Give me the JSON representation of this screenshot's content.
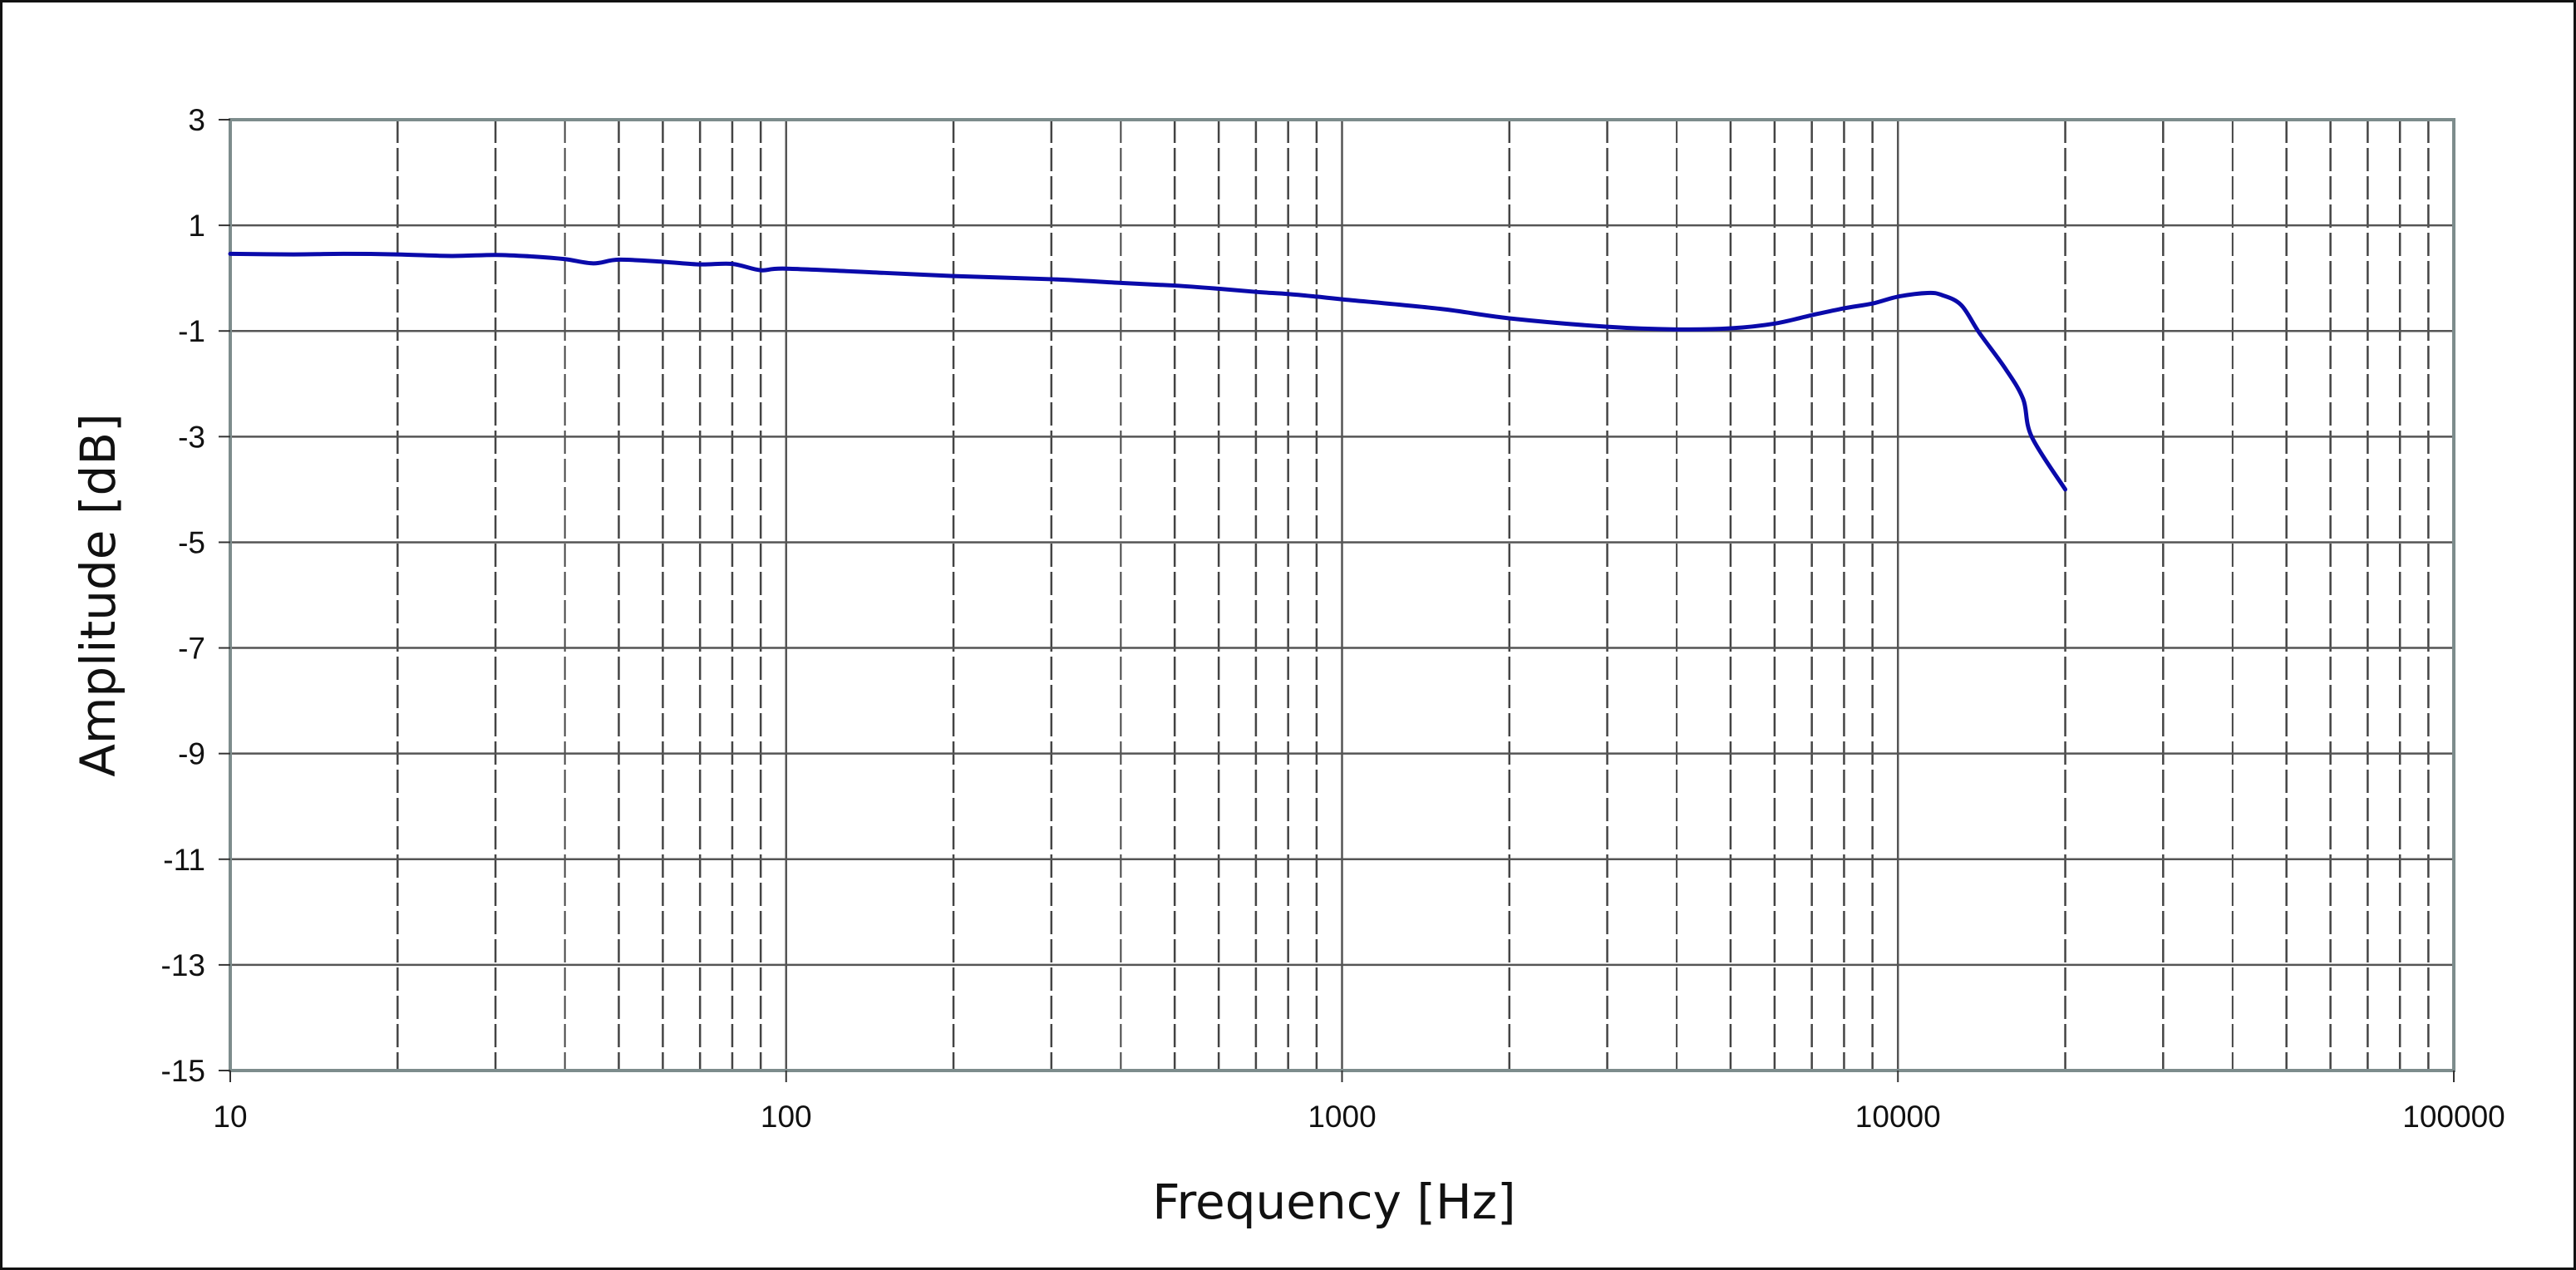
{
  "chart_data": {
    "type": "line",
    "title": "",
    "xlabel": "Frequency [Hz]",
    "ylabel": "Amplitude [dB]",
    "xscale": "log",
    "xlim": [
      10,
      100000
    ],
    "ylim": [
      -15,
      3
    ],
    "x_tick_labels": [
      "10",
      "100",
      "1000",
      "10000",
      "100000"
    ],
    "x_ticks": [
      10,
      100,
      1000,
      10000,
      100000
    ],
    "y_tick_labels": [
      "3",
      "1",
      "-1",
      "-3",
      "-5",
      "-7",
      "-9",
      "-11",
      "-13",
      "-15"
    ],
    "y_ticks": [
      3,
      1,
      -1,
      -3,
      -5,
      -7,
      -9,
      -11,
      -13,
      -15
    ],
    "grid": true,
    "minor_grid_style": "dashed",
    "legend": null,
    "series": [
      {
        "name": "Amplitude",
        "color": "#0a0aaa",
        "x": [
          10,
          13,
          16,
          20,
          25,
          30,
          35,
          40,
          45,
          50,
          60,
          70,
          80,
          90,
          100,
          150,
          200,
          300,
          400,
          500,
          600,
          700,
          800,
          900,
          1000,
          1500,
          2000,
          3000,
          4000,
          5000,
          6000,
          7000,
          8000,
          9000,
          10000,
          11300,
          12000,
          13000,
          14000,
          15600,
          16800,
          17400,
          20000
        ],
        "values": [
          0.46,
          0.45,
          0.46,
          0.45,
          0.42,
          0.44,
          0.41,
          0.36,
          0.28,
          0.35,
          0.31,
          0.26,
          0.27,
          0.15,
          0.18,
          0.1,
          0.04,
          -0.02,
          -0.09,
          -0.14,
          -0.2,
          -0.26,
          -0.3,
          -0.35,
          -0.4,
          -0.58,
          -0.76,
          -0.92,
          -0.97,
          -0.95,
          -0.86,
          -0.7,
          -0.57,
          -0.48,
          -0.35,
          -0.28,
          -0.32,
          -0.51,
          -1.03,
          -1.71,
          -2.29,
          -3.0,
          -4.0
        ]
      }
    ]
  },
  "colors": {
    "background": "#ffffff",
    "frame_border": "#111111",
    "plot_border": "#7d8c8c",
    "major_grid": "#555555",
    "minor_grid": "#444444",
    "curve": "#0a0aaa"
  }
}
